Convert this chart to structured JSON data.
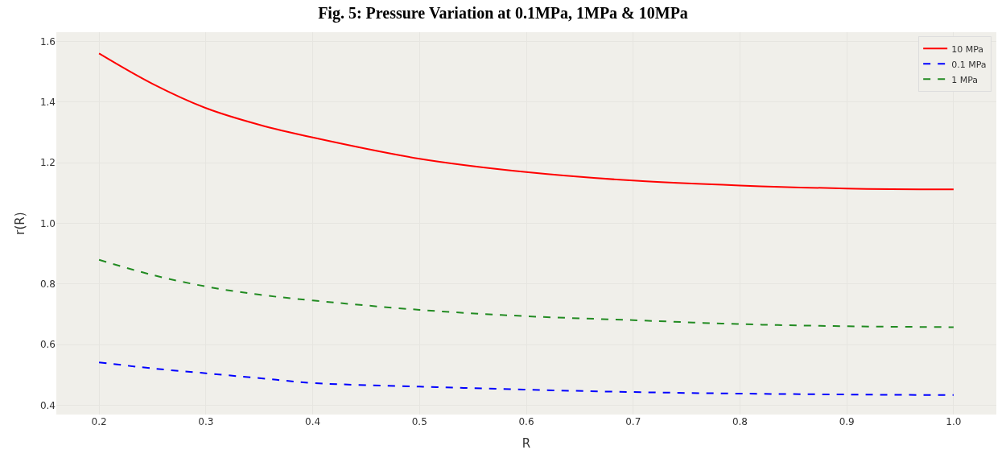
{
  "chart_data": {
    "type": "line",
    "title": "Fig. 5: Pressure Variation at 0.1MPa, 1MPa & 10MPa",
    "xlabel": "R",
    "ylabel": "r(R)",
    "x": [
      0.2,
      0.25,
      0.3,
      0.35,
      0.4,
      0.5,
      0.6,
      0.7,
      0.8,
      0.9,
      1.0
    ],
    "series": [
      {
        "name": "10 MPa",
        "color": "#ff0000",
        "line_style": "solid",
        "values": [
          1.56,
          1.46,
          1.38,
          1.325,
          1.283,
          1.213,
          1.169,
          1.141,
          1.125,
          1.115,
          1.112
        ]
      },
      {
        "name": "0.1 MPa",
        "color": "#0000ff",
        "line_style": "dashed",
        "values": [
          0.542,
          0.522,
          0.506,
          0.49,
          0.474,
          0.462,
          0.452,
          0.444,
          0.439,
          0.436,
          0.434
        ]
      },
      {
        "name": "1 MPa",
        "color": "#228b22",
        "line_style": "dashed",
        "values": [
          0.88,
          0.83,
          0.792,
          0.765,
          0.746,
          0.715,
          0.694,
          0.681,
          0.668,
          0.661,
          0.658
        ]
      }
    ],
    "xlim": [
      0.16,
      1.04
    ],
    "ylim": [
      0.37,
      1.63
    ],
    "xticks": [
      {
        "value": 0.2,
        "label": "0.2"
      },
      {
        "value": 0.3,
        "label": "0.3"
      },
      {
        "value": 0.4,
        "label": "0.4"
      },
      {
        "value": 0.5,
        "label": "0.5"
      },
      {
        "value": 0.6,
        "label": "0.6"
      },
      {
        "value": 0.7,
        "label": "0.7"
      },
      {
        "value": 0.8,
        "label": "0.8"
      },
      {
        "value": 0.9,
        "label": "0.9"
      },
      {
        "value": 1.0,
        "label": "1.0"
      }
    ],
    "yticks": [
      {
        "value": 0.4,
        "label": "0.4"
      },
      {
        "value": 0.6,
        "label": "0.6"
      },
      {
        "value": 0.8,
        "label": "0.8"
      },
      {
        "value": 1.0,
        "label": "1.0"
      },
      {
        "value": 1.2,
        "label": "1.2"
      },
      {
        "value": 1.4,
        "label": "1.4"
      },
      {
        "value": 1.6,
        "label": "1.6"
      }
    ],
    "grid": true,
    "legend": "top right"
  }
}
